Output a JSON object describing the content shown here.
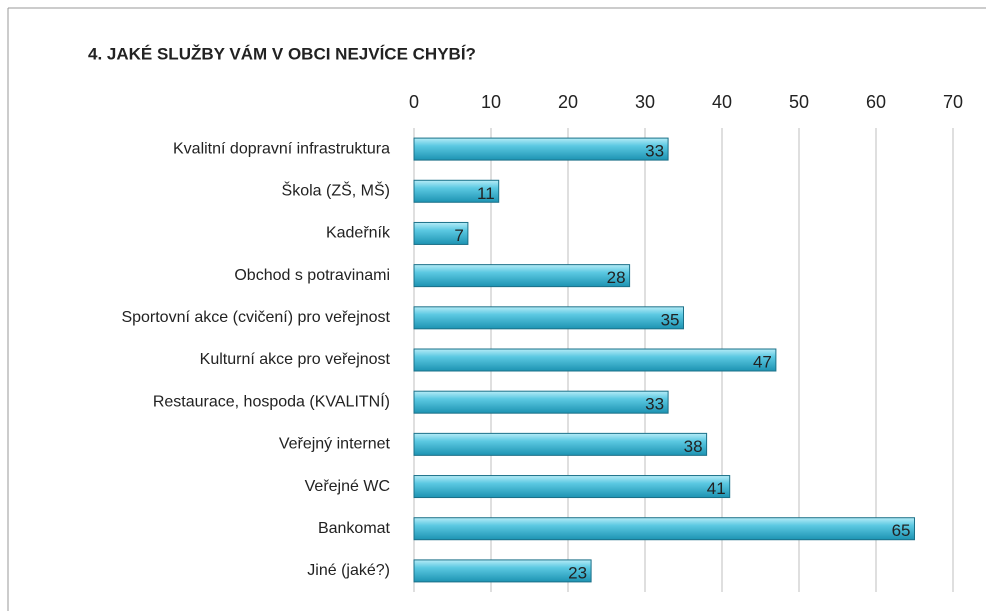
{
  "chart_data": {
    "type": "bar",
    "orientation": "horizontal",
    "title": "4. JAKÉ SLUŽBY VÁM V OBCI NEJVÍCE CHYBÍ?",
    "categories": [
      "Kvalitní dopravní infrastruktura",
      "Škola (ZŠ, MŠ)",
      "Kadeřník",
      "Obchod s potravinami",
      "Sportovní akce (cvičení) pro veřejnost",
      "Kulturní akce pro veřejnost",
      "Restaurace, hospoda (KVALITNÍ)",
      "Veřejný internet",
      "Veřejné WC",
      "Bankomat",
      "Jiné (jaké?)"
    ],
    "values": [
      33,
      11,
      7,
      28,
      35,
      47,
      33,
      38,
      41,
      65,
      23
    ],
    "color": "#3bb8d6",
    "xlim": [
      0,
      70
    ],
    "xticks": [
      0,
      10,
      20,
      30,
      40,
      50,
      60,
      70
    ],
    "grid": true
  }
}
